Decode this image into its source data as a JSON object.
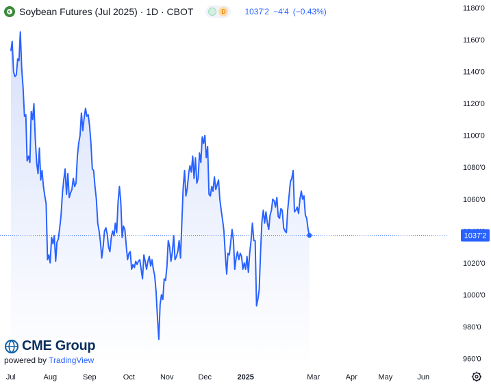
{
  "header": {
    "title": "Soybean Futures (Jul 2025) · 1D · CBOT",
    "status_badge": "D",
    "last_price": "1037'2",
    "change": "−4'4",
    "change_pct": "(−0.43%)"
  },
  "branding": {
    "logo_text": "CME Group",
    "powered_prefix": "powered by ",
    "powered_brand": "TradingView"
  },
  "colors": {
    "line": "#2962ff",
    "fill_top": "#d6e0fb",
    "fill_bottom": "#ffffff",
    "axis_text": "#131722",
    "price_label_bg": "#2962ff"
  },
  "chart_data": {
    "type": "area",
    "ylim": [
      955,
      1185
    ],
    "y_ticks": [
      "1180'0",
      "1160'0",
      "1140'0",
      "1120'0",
      "1100'0",
      "1080'0",
      "1060'0",
      "1040'0",
      "1020'0",
      "1000'0",
      "980'0",
      "960'0"
    ],
    "y_tick_values": [
      1180,
      1160,
      1140,
      1120,
      1100,
      1080,
      1060,
      1040,
      1020,
      1000,
      980,
      960
    ],
    "x_ticks": [
      "Jul",
      "Aug",
      "Sep",
      "Oct",
      "Nov",
      "Dec",
      "2025",
      "Mar",
      "Apr",
      "May",
      "Jun"
    ],
    "x_tick_positions": [
      0,
      29,
      58,
      87,
      115,
      143,
      173,
      223,
      251,
      276,
      304
    ],
    "x_range": [
      -8,
      321
    ],
    "current_price": 1037.25,
    "current_price_label": "1037'2",
    "series": [
      {
        "values": [
          1153,
          1159,
          1140,
          1137,
          1138,
          1148,
          1147,
          1165,
          1142,
          1130,
          1112,
          1113,
          1084,
          1087,
          1083,
          1115,
          1110,
          1120,
          1098,
          1083,
          1076,
          1092,
          1072,
          1078,
          1068,
          1062,
          1057,
          1022,
          1025,
          1020,
          1036,
          1032,
          1037,
          1021,
          1033,
          1035,
          1042,
          1050,
          1064,
          1072,
          1079,
          1063,
          1076,
          1061,
          1064,
          1066,
          1073,
          1068,
          1070,
          1087,
          1095,
          1100,
          1114,
          1103,
          1111,
          1117,
          1112,
          1113,
          1106,
          1095,
          1079,
          1078,
          1068,
          1060,
          1045,
          1040,
          1033,
          1023,
          1030,
          1040,
          1042,
          1038,
          1030,
          1027,
          1036,
          1040,
          1037,
          1045,
          1039,
          1058,
          1068,
          1058,
          1036,
          1043,
          1041,
          1031,
          1022,
          1026,
          1027,
          1016,
          1019,
          1017,
          1021,
          1019,
          1021,
          1022,
          1016,
          1010,
          1025,
          1021,
          1016,
          1021,
          1024,
          1018,
          1022,
          1016,
          1012,
          1002,
          986,
          972,
          994,
          1000,
          997,
          1010,
          1009,
          1018,
          1034,
          1030,
          1021,
          1027,
          1037,
          1022,
          1024,
          1027,
          1034,
          1023,
          1046,
          1067,
          1078,
          1062,
          1067,
          1076,
          1081,
          1077,
          1087,
          1073,
          1086,
          1070,
          1073,
          1089,
          1083,
          1099,
          1095,
          1100,
          1086,
          1093,
          1063,
          1062,
          1068,
          1065,
          1074,
          1066,
          1069,
          1072,
          1060,
          1053,
          1047,
          1040,
          1025,
          1013,
          1026,
          1025,
          1033,
          1041,
          1034,
          1016,
          1023,
          1027,
          1022,
          1026,
          1024,
          1016,
          1020,
          1016,
          1024,
          1014,
          1026,
          1034,
          1045,
          1034,
          1034,
          993,
          997,
          1003,
          1027,
          1046,
          1053,
          1045,
          1052,
          1045,
          1041,
          1050,
          1053,
          1060,
          1059,
          1055,
          1061,
          1049,
          1048,
          1054,
          1053,
          1042,
          1040,
          1039,
          1053,
          1062,
          1071,
          1073,
          1078,
          1052,
          1053,
          1055,
          1051,
          1060,
          1065,
          1060,
          1062,
          1050,
          1048,
          1041,
          1037.25
        ]
      }
    ]
  }
}
